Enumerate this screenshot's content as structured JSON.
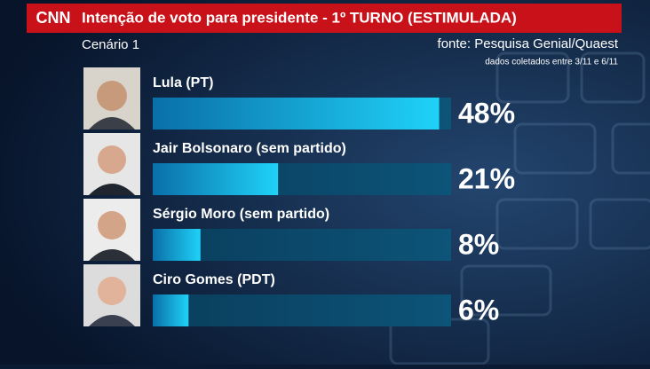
{
  "chart_data": {
    "type": "bar",
    "logo": "CNN",
    "title": "Intenção de voto para presidente - 1º TURNO (ESTIMULADA)",
    "subtitle": "Cenário 1",
    "source": "fonte: Pesquisa Genial/Quaest",
    "note": "dados coletados entre 3/11 e 6/11",
    "categories": [
      "Lula (PT)",
      "Jair Bolsonaro (sem partido)",
      "Sérgio Moro (sem partido)",
      "Ciro Gomes (PDT)"
    ],
    "values": [
      48,
      21,
      8,
      6
    ],
    "value_labels": [
      "48%",
      "21%",
      "8%",
      "6%"
    ],
    "color": "#1cc4f0"
  }
}
